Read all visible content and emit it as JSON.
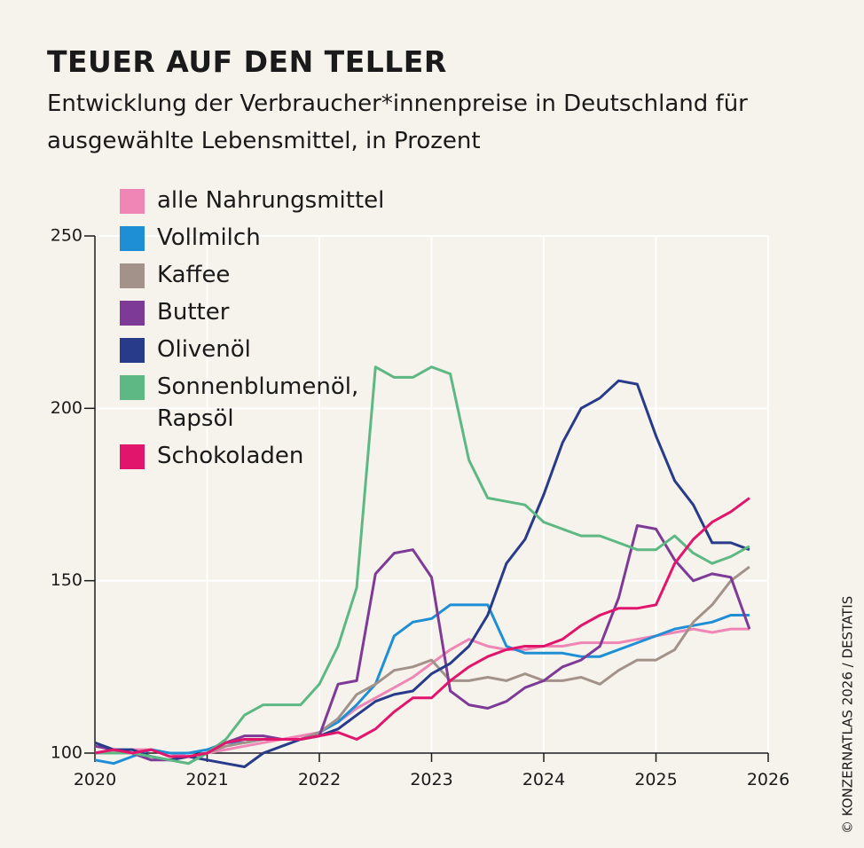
{
  "chart_data": {
    "type": "line",
    "title": "TEUER AUF DEN TELLER",
    "subtitle": "Entwicklung der Verbraucher*innenpreise in Deutschland für ausgewählte Lebensmittel, in Prozent",
    "credit": "© KONZERNATLAS 2026 / DESTATIS",
    "x": [
      2020,
      2020.167,
      2020.333,
      2020.5,
      2020.667,
      2020.833,
      2021,
      2021.167,
      2021.333,
      2021.5,
      2021.667,
      2021.833,
      2022,
      2022.167,
      2022.333,
      2022.5,
      2022.667,
      2022.833,
      2023,
      2023.167,
      2023.333,
      2023.5,
      2023.667,
      2023.833,
      2024,
      2024.167,
      2024.333,
      2024.5,
      2024.667,
      2024.833,
      2025,
      2025.167,
      2025.333,
      2025.5,
      2025.667,
      2025.833
    ],
    "xlim": [
      2020,
      2026
    ],
    "xticks": [
      2020,
      2021,
      2022,
      2023,
      2024,
      2025,
      2026
    ],
    "ylim": [
      100,
      250
    ],
    "yticks": [
      100,
      150,
      200,
      250
    ],
    "grid": true,
    "series": [
      {
        "name": "alle Nahrungsmittel",
        "color": "#ef86b6",
        "values": [
          100,
          100.5,
          101,
          101,
          100,
          99,
          100,
          101,
          102,
          103,
          104,
          105,
          106,
          109,
          113,
          116,
          119,
          122,
          126,
          130,
          133,
          131,
          130,
          130,
          131,
          131,
          132,
          132,
          132,
          133,
          134,
          135,
          136,
          135,
          136,
          136
        ]
      },
      {
        "name": "Vollmilch",
        "color": "#1e8fd5",
        "values": [
          98,
          97,
          99,
          101,
          100,
          100,
          101,
          103,
          103,
          104,
          104,
          104,
          106,
          109,
          114,
          120,
          134,
          138,
          139,
          143,
          143,
          143,
          131,
          129,
          129,
          129,
          128,
          128,
          130,
          132,
          134,
          136,
          137,
          138,
          140,
          140
        ]
      },
      {
        "name": "Kaffee",
        "color": "#a39289",
        "values": [
          100,
          101,
          100,
          99,
          98,
          97,
          100,
          102,
          103,
          104,
          104,
          104,
          106,
          110,
          117,
          120,
          124,
          125,
          127,
          121,
          121,
          122,
          121,
          123,
          121,
          121,
          122,
          120,
          124,
          127,
          127,
          130,
          138,
          143,
          150,
          154
        ]
      },
      {
        "name": "Butter",
        "color": "#7d3a96",
        "values": [
          102,
          101,
          100,
          98,
          98,
          99,
          100,
          103,
          105,
          105,
          104,
          104,
          105,
          120,
          121,
          152,
          158,
          159,
          151,
          118,
          114,
          113,
          115,
          119,
          121,
          125,
          127,
          131,
          145,
          166,
          165,
          156,
          150,
          152,
          151,
          136
        ]
      },
      {
        "name": "Olivenöl",
        "color": "#273b8a",
        "values": [
          103,
          101,
          101,
          99,
          98,
          99,
          98,
          97,
          96,
          100,
          102,
          104,
          105,
          107,
          111,
          115,
          117,
          118,
          123,
          126,
          131,
          140,
          155,
          162,
          175,
          190,
          200,
          203,
          208,
          207,
          192,
          179,
          172,
          161,
          161,
          159
        ]
      },
      {
        "name": "Sonnenblumenöl, Rapsöl",
        "color": "#5db884",
        "values": [
          100,
          100,
          100,
          99,
          98,
          97,
          100,
          104,
          111,
          114,
          114,
          114,
          120,
          131,
          148,
          212,
          209,
          209,
          212,
          210,
          185,
          174,
          173,
          172,
          167,
          165,
          163,
          163,
          161,
          159,
          159,
          163,
          158,
          155,
          157,
          160
        ]
      },
      {
        "name": "Schokoladen",
        "color": "#e2156c",
        "values": [
          100,
          101,
          100,
          101,
          99,
          99,
          100,
          103,
          104,
          104,
          104,
          104,
          105,
          106,
          104,
          107,
          112,
          116,
          116,
          121,
          125,
          128,
          130,
          131,
          131,
          133,
          137,
          140,
          142,
          142,
          143,
          155,
          162,
          167,
          170,
          174
        ]
      }
    ]
  }
}
